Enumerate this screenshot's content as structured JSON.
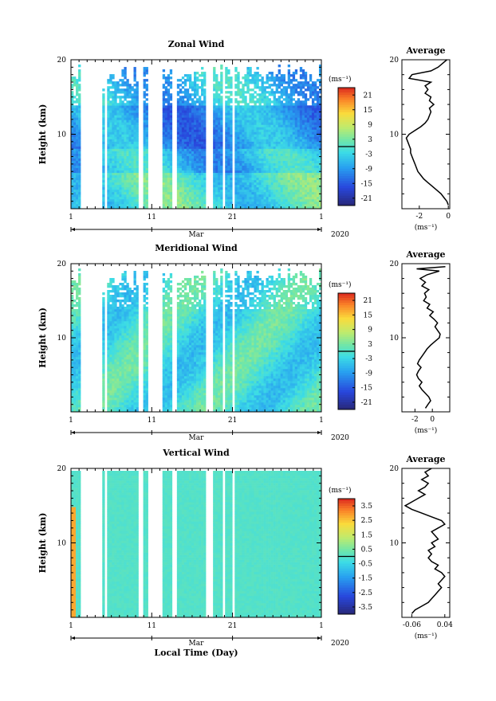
{
  "figure": {
    "xlabel": "Local Time (Day)",
    "month_label": "Mar",
    "year_label": "2020"
  },
  "chart_data": [
    {
      "type": "heatmap",
      "title": "Zonal Wind",
      "ylabel": "Height (km)",
      "xlabel": "Local Time (Day)",
      "x_ticks": [
        "1",
        "11",
        "21",
        "1"
      ],
      "y_ticks": [
        "10",
        "20"
      ],
      "ylim": [
        0,
        20
      ],
      "colorbar": {
        "unit": "(ms⁻¹)",
        "ticks": [
          "21",
          "15",
          "9",
          "3",
          "-3",
          "-9",
          "-15",
          "-21"
        ],
        "range": [
          -24,
          24
        ]
      },
      "profile": {
        "title": "Average",
        "xlabel": "(ms⁻¹)",
        "x_ticks": [
          "-2",
          "0"
        ],
        "y_ticks": [
          "10",
          "20"
        ],
        "xlim": [
          -3.2,
          0.1
        ],
        "points": [
          [
            0.0,
            0.5
          ],
          [
            -0.1,
            1.0
          ],
          [
            -0.3,
            1.5
          ],
          [
            -0.5,
            2.0
          ],
          [
            -0.8,
            2.5
          ],
          [
            -1.1,
            3.0
          ],
          [
            -1.4,
            3.5
          ],
          [
            -1.7,
            4.0
          ],
          [
            -1.9,
            4.5
          ],
          [
            -2.1,
            5.0
          ],
          [
            -2.2,
            5.5
          ],
          [
            -2.3,
            6.0
          ],
          [
            -2.4,
            6.5
          ],
          [
            -2.5,
            7.0
          ],
          [
            -2.6,
            7.5
          ],
          [
            -2.6,
            8.0
          ],
          [
            -2.7,
            8.5
          ],
          [
            -2.8,
            9.0
          ],
          [
            -2.9,
            9.5
          ],
          [
            -2.7,
            10.0
          ],
          [
            -2.3,
            10.5
          ],
          [
            -1.9,
            11.0
          ],
          [
            -1.6,
            11.5
          ],
          [
            -1.4,
            12.0
          ],
          [
            -1.3,
            12.5
          ],
          [
            -1.2,
            13.0
          ],
          [
            -1.3,
            13.5
          ],
          [
            -1.0,
            14.0
          ],
          [
            -1.3,
            14.5
          ],
          [
            -1.2,
            15.0
          ],
          [
            -1.6,
            15.5
          ],
          [
            -1.4,
            16.0
          ],
          [
            -1.6,
            16.5
          ],
          [
            -1.2,
            17.0
          ],
          [
            -2.7,
            17.5
          ],
          [
            -2.5,
            18.0
          ],
          [
            -1.2,
            18.5
          ],
          [
            -0.7,
            19.0
          ],
          [
            -0.4,
            19.5
          ],
          [
            -0.1,
            20.0
          ]
        ]
      }
    },
    {
      "type": "heatmap",
      "title": "Meridional Wind",
      "ylabel": "Height (km)",
      "xlabel": "Local Time (Day)",
      "x_ticks": [
        "1",
        "11",
        "21",
        "1"
      ],
      "y_ticks": [
        "10",
        "20"
      ],
      "ylim": [
        0,
        20
      ],
      "colorbar": {
        "unit": "(ms⁻¹)",
        "ticks": [
          "21",
          "15",
          "9",
          "3",
          "-3",
          "-9",
          "-15",
          "-21"
        ],
        "range": [
          -24,
          24
        ]
      },
      "profile": {
        "title": "Average",
        "xlabel": "(ms⁻¹)",
        "x_ticks": [
          "-2",
          "0"
        ],
        "y_ticks": [
          "10",
          "20"
        ],
        "xlim": [
          -3.5,
          2.0
        ],
        "points": [
          [
            -0.8,
            0.5
          ],
          [
            -0.5,
            1.0
          ],
          [
            -0.2,
            1.5
          ],
          [
            -0.4,
            2.0
          ],
          [
            -0.8,
            2.5
          ],
          [
            -1.2,
            3.0
          ],
          [
            -1.5,
            3.5
          ],
          [
            -1.2,
            4.0
          ],
          [
            -1.6,
            4.5
          ],
          [
            -1.8,
            5.0
          ],
          [
            -1.6,
            5.5
          ],
          [
            -1.3,
            6.0
          ],
          [
            -1.7,
            6.5
          ],
          [
            -1.5,
            7.0
          ],
          [
            -1.2,
            7.5
          ],
          [
            -0.9,
            8.0
          ],
          [
            -0.6,
            8.5
          ],
          [
            -0.2,
            9.0
          ],
          [
            0.3,
            9.5
          ],
          [
            0.8,
            10.0
          ],
          [
            0.9,
            10.5
          ],
          [
            0.6,
            11.0
          ],
          [
            0.3,
            11.5
          ],
          [
            0.6,
            12.0
          ],
          [
            0.2,
            12.5
          ],
          [
            -0.3,
            13.0
          ],
          [
            0.1,
            13.5
          ],
          [
            -0.6,
            14.0
          ],
          [
            -0.3,
            14.5
          ],
          [
            -1.0,
            15.0
          ],
          [
            -0.7,
            15.5
          ],
          [
            -0.9,
            16.0
          ],
          [
            -0.4,
            16.5
          ],
          [
            -1.2,
            17.0
          ],
          [
            -0.8,
            17.5
          ],
          [
            -1.4,
            18.0
          ],
          [
            -0.6,
            18.5
          ],
          [
            0.8,
            19.0
          ],
          [
            -1.8,
            19.3
          ],
          [
            1.5,
            19.6
          ]
        ]
      }
    },
    {
      "type": "heatmap",
      "title": "Vertical Wind",
      "ylabel": "Height (km)",
      "xlabel": "Local Time (Day)",
      "x_ticks": [
        "1",
        "11",
        "21",
        "1"
      ],
      "y_ticks": [
        "10",
        "20"
      ],
      "ylim": [
        0,
        20
      ],
      "colorbar": {
        "unit": "(ms⁻¹)",
        "ticks": [
          "3.5",
          "2.5",
          "1.5",
          "0.5",
          "-0.5",
          "-1.5",
          "-2.5",
          "-3.5"
        ],
        "range": [
          -4,
          4
        ]
      },
      "profile": {
        "title": "Average",
        "xlabel": "(ms⁻¹)",
        "x_ticks": [
          "-0.06",
          "0.04"
        ],
        "y_ticks": [
          "10",
          "20"
        ],
        "xlim": [
          -0.09,
          0.055
        ],
        "points": [
          [
            -0.06,
            0.5
          ],
          [
            -0.05,
            1.0
          ],
          [
            -0.03,
            1.5
          ],
          [
            -0.01,
            2.0
          ],
          [
            0.0,
            2.5
          ],
          [
            0.01,
            3.0
          ],
          [
            0.02,
            3.5
          ],
          [
            0.03,
            4.0
          ],
          [
            0.02,
            4.5
          ],
          [
            0.03,
            5.0
          ],
          [
            0.04,
            5.5
          ],
          [
            0.03,
            6.0
          ],
          [
            0.01,
            6.5
          ],
          [
            0.02,
            7.0
          ],
          [
            0.0,
            7.5
          ],
          [
            -0.01,
            8.0
          ],
          [
            0.0,
            8.5
          ],
          [
            -0.01,
            9.0
          ],
          [
            0.01,
            9.5
          ],
          [
            0.0,
            10.0
          ],
          [
            0.02,
            10.5
          ],
          [
            0.01,
            11.0
          ],
          [
            0.0,
            11.5
          ],
          [
            0.02,
            12.0
          ],
          [
            0.04,
            12.5
          ],
          [
            0.03,
            13.0
          ],
          [
            0.0,
            13.5
          ],
          [
            -0.03,
            14.0
          ],
          [
            -0.06,
            14.5
          ],
          [
            -0.08,
            15.0
          ],
          [
            -0.06,
            15.5
          ],
          [
            -0.04,
            16.0
          ],
          [
            -0.02,
            16.5
          ],
          [
            -0.04,
            17.0
          ],
          [
            -0.02,
            17.5
          ],
          [
            -0.01,
            18.0
          ],
          [
            -0.03,
            18.5
          ],
          [
            -0.01,
            19.0
          ],
          [
            -0.02,
            19.5
          ],
          [
            0.0,
            20.0
          ]
        ]
      }
    }
  ]
}
